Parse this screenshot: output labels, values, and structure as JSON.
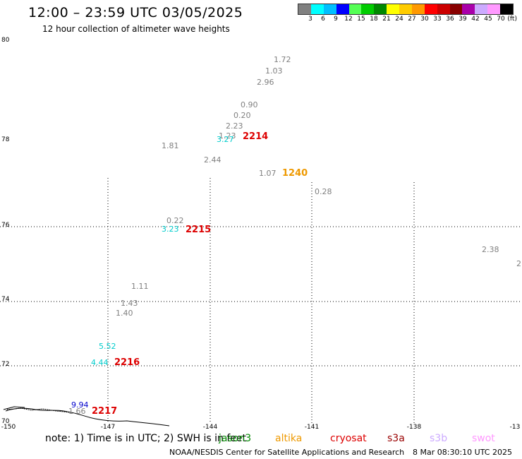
{
  "header": {
    "title": "12:00 – 23:59 UTC 03/05/2025",
    "subtitle": "12 hour collection of altimeter wave heights"
  },
  "color_scale": {
    "unit": "(ft)",
    "colors": [
      "#808080",
      "#00ffff",
      "#00bfff",
      "#0000ff",
      "#55ff55",
      "#00cc00",
      "#008800",
      "#ffff00",
      "#ffcc00",
      "#ff9900",
      "#ff0000",
      "#cc0000",
      "#880000",
      "#aa00aa",
      "#ccaaff",
      "#ff99ff",
      "#000000"
    ],
    "labels": [
      "3",
      "6",
      "9",
      "12",
      "15",
      "18",
      "21",
      "24",
      "27",
      "30",
      "33",
      "36",
      "39",
      "42",
      "45",
      "70",
      "(ft)"
    ]
  },
  "axes": {
    "lat_labels": [
      "80",
      "78",
      "76",
      "74",
      "72",
      "70"
    ],
    "lon_labels": [
      "-150",
      "-147",
      "-144",
      "-141",
      "-138",
      "-13"
    ]
  },
  "points": [
    {
      "text": "1.72",
      "color": "#808080"
    },
    {
      "text": "1.03",
      "color": "#808080"
    },
    {
      "text": "2.96",
      "color": "#808080"
    },
    {
      "text": "0.90",
      "color": "#808080"
    },
    {
      "text": "0.20",
      "color": "#808080"
    },
    {
      "text": "2.23",
      "color": "#808080"
    },
    {
      "text": "1.23",
      "color": "#808080"
    },
    {
      "text": "3.27",
      "color": "#00cccc"
    },
    {
      "text": "1.81",
      "color": "#808080"
    },
    {
      "text": "2.44",
      "color": "#808080"
    },
    {
      "text": "1.07",
      "color": "#808080"
    },
    {
      "text": "0.28",
      "color": "#808080"
    },
    {
      "text": "0.22",
      "color": "#808080"
    },
    {
      "text": "3.23",
      "color": "#00cccc"
    },
    {
      "text": "2.38",
      "color": "#808080"
    },
    {
      "text": "2",
      "color": "#808080"
    },
    {
      "text": "1.11",
      "color": "#808080"
    },
    {
      "text": "1.43",
      "color": "#808080"
    },
    {
      "text": "1.40",
      "color": "#808080"
    },
    {
      "text": "5.52",
      "color": "#00cccc"
    },
    {
      "text": "4.44",
      "color": "#00cccc"
    },
    {
      "text": "9.94",
      "color": "#0000cc"
    },
    {
      "text": "1.66",
      "color": "#808080"
    }
  ],
  "passes": [
    {
      "text": "2214",
      "color": "#dd0000"
    },
    {
      "text": "1240",
      "color": "#ee9900"
    },
    {
      "text": "2215",
      "color": "#dd0000"
    },
    {
      "text": "2216",
      "color": "#dd0000"
    },
    {
      "text": "2217",
      "color": "#dd0000"
    }
  ],
  "footer": {
    "note": "note: 1) Time is in UTC; 2) SWH is in feet",
    "satellites": [
      {
        "name": "jason3",
        "color": "#008800"
      },
      {
        "name": "altika",
        "color": "#ee9900"
      },
      {
        "name": "cryosat",
        "color": "#dd0000"
      },
      {
        "name": "s3a",
        "color": "#990000"
      },
      {
        "name": "s3b",
        "color": "#ccaaff"
      },
      {
        "name": "swot",
        "color": "#ff99ff"
      }
    ],
    "credit": "NOAA/NESDIS Center for Satellite Applications and Research",
    "timestamp": "8 Mar 08:30:10 UTC 2025"
  }
}
